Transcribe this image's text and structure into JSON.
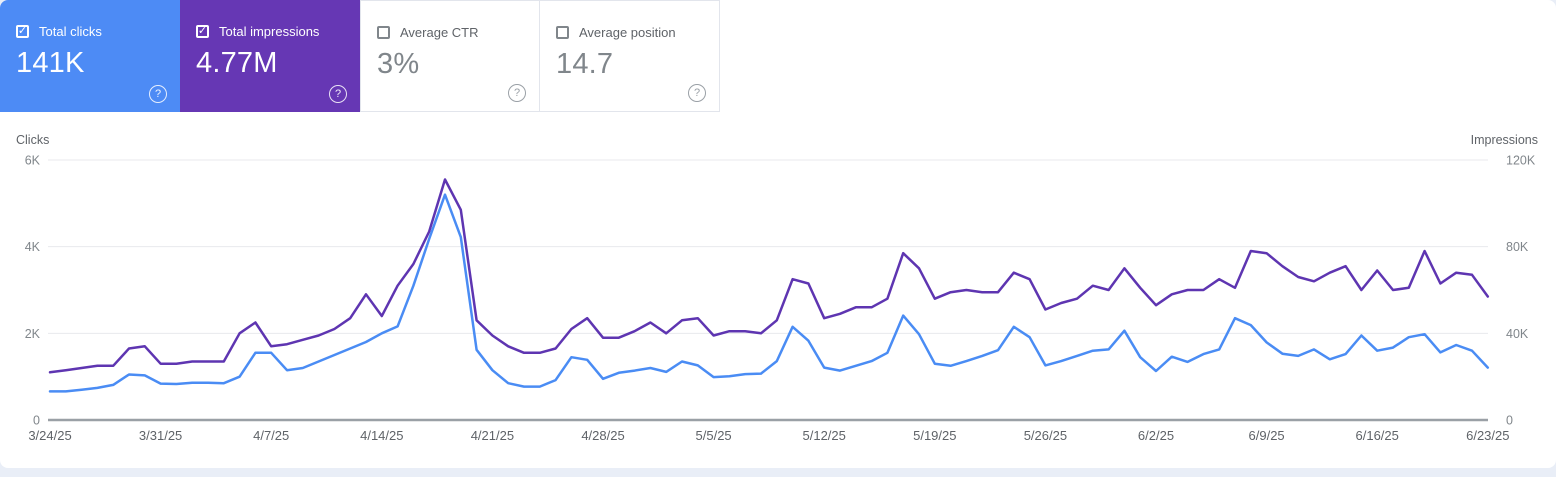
{
  "page": {
    "background": "#e9eef7",
    "card_background": "#ffffff"
  },
  "metric_cards": [
    {
      "label": "Total clicks",
      "value": "141K",
      "checked": true,
      "background": "#4d8bf5",
      "help_icon": "?"
    },
    {
      "label": "Total impressions",
      "value": "4.77M",
      "checked": true,
      "background": "#6637b4",
      "help_icon": "?"
    },
    {
      "label": "Average CTR",
      "value": "3%",
      "checked": false,
      "background": "",
      "help_icon": "?"
    },
    {
      "label": "Average position",
      "value": "14.7",
      "checked": false,
      "background": "",
      "help_icon": "?"
    }
  ],
  "chart_data": {
    "type": "line",
    "x_start": "3/24/25",
    "x_end": "6/23/25",
    "x_frequency": "daily",
    "x_tick_labels": [
      "3/24/25",
      "3/31/25",
      "4/7/25",
      "4/14/25",
      "4/21/25",
      "4/28/25",
      "5/5/25",
      "5/12/25",
      "5/19/25",
      "5/26/25",
      "6/2/25",
      "6/9/25",
      "6/16/25",
      "6/23/25"
    ],
    "x_tick_every": 7,
    "grid": "horizontal",
    "left_axis": {
      "label": "Clicks",
      "ticks": [
        "6K",
        "4K",
        "2K",
        "0"
      ],
      "range": [
        0,
        6000
      ]
    },
    "right_axis": {
      "label": "Impressions",
      "ticks": [
        "120K",
        "80K",
        "40K",
        "0"
      ],
      "range": [
        0,
        120000
      ]
    },
    "series": [
      {
        "name": "Clicks",
        "axis": "left",
        "color": "#4a8cf4",
        "values": [
          660,
          660,
          700,
          740,
          810,
          1050,
          1030,
          840,
          830,
          860,
          860,
          850,
          1000,
          1550,
          1550,
          1150,
          1200,
          1350,
          1500,
          1650,
          1800,
          2000,
          2160,
          3100,
          4180,
          5200,
          4220,
          1620,
          1150,
          850,
          770,
          770,
          920,
          1450,
          1390,
          950,
          1090,
          1140,
          1200,
          1110,
          1350,
          1260,
          990,
          1010,
          1060,
          1070,
          1360,
          2150,
          1830,
          1210,
          1140,
          1250,
          1360,
          1550,
          2410,
          1980,
          1300,
          1250,
          1360,
          1480,
          1610,
          2150,
          1910,
          1260,
          1360,
          1480,
          1600,
          1630,
          2060,
          1450,
          1130,
          1460,
          1340,
          1520,
          1630,
          2350,
          2190,
          1790,
          1530,
          1480,
          1630,
          1400,
          1520,
          1950,
          1600,
          1670,
          1910,
          1980,
          1560,
          1730,
          1600,
          1210
        ]
      },
      {
        "name": "Impressions",
        "axis": "right",
        "color": "#5e35b1",
        "values": [
          22000,
          23000,
          24000,
          25000,
          25000,
          33000,
          34000,
          26000,
          26000,
          27000,
          27000,
          27000,
          40000,
          45000,
          34000,
          35000,
          37000,
          39000,
          42000,
          47000,
          58000,
          48000,
          62000,
          72000,
          87000,
          111000,
          97000,
          46000,
          39000,
          34000,
          31000,
          31000,
          33000,
          42000,
          47000,
          38000,
          38000,
          41000,
          45000,
          40000,
          46000,
          47000,
          39000,
          41000,
          41000,
          40000,
          46000,
          65000,
          63000,
          47000,
          49000,
          52000,
          52000,
          56000,
          77000,
          70000,
          56000,
          59000,
          60000,
          59000,
          59000,
          68000,
          65000,
          51000,
          54000,
          56000,
          62000,
          60000,
          70000,
          61000,
          53000,
          58000,
          60000,
          60000,
          65000,
          61000,
          78000,
          77000,
          71000,
          66000,
          64000,
          68000,
          71000,
          60000,
          69000,
          60000,
          61000,
          78000,
          63000,
          68000,
          67000,
          57000
        ]
      }
    ]
  }
}
